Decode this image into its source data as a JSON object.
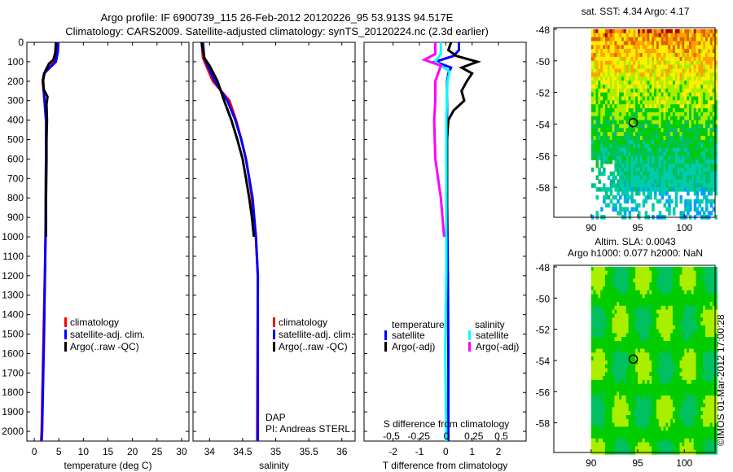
{
  "title_line1": "Argo profile: IF 6900739_115 26-Feb-2012 20120226_95 53.913S 94.517E",
  "title_line2": "Climatology: CARS2009. Satellite-adjusted climatology: synTS_20120224.nc (2.3d earlier)",
  "depth_ticks": [
    0,
    100,
    200,
    300,
    400,
    500,
    600,
    700,
    800,
    900,
    1000,
    1100,
    1200,
    1300,
    1400,
    1500,
    1600,
    1700,
    1800,
    1900,
    2000
  ],
  "colors": {
    "climatology": "#ff0000",
    "satellite": "#0000ff",
    "argo": "#000000",
    "sal_satellite": "#00ffff",
    "sal_argo": "#ff00ff"
  },
  "chart_data": [
    {
      "type": "line",
      "xlabel": "temperature (deg C)",
      "xlim": [
        -1.5,
        31.5
      ],
      "ylim": [
        0,
        2050
      ],
      "xticks": [
        0,
        5,
        10,
        15,
        20,
        25,
        30
      ],
      "legend": [
        "climatology",
        "satellite-adj. clim.",
        "Argo(..raw -QC)"
      ],
      "series": [
        {
          "name": "climatology",
          "color": "#ff0000",
          "depth": [
            0,
            50,
            100,
            130,
            160,
            200,
            300,
            400,
            600,
            1000,
            1150,
            1500,
            2000,
            2050
          ],
          "values": [
            4.4,
            4.4,
            4.1,
            3.0,
            2.0,
            1.7,
            2.1,
            2.4,
            2.4,
            2.3,
            2.2,
            1.9,
            1.5,
            1.4
          ]
        },
        {
          "name": "satellite-adj. clim.",
          "color": "#0000ff",
          "depth": [
            0,
            50,
            100,
            130,
            160,
            200,
            300,
            400,
            600,
            1000,
            1500,
            2000,
            2050
          ],
          "values": [
            4.9,
            4.8,
            4.4,
            3.2,
            2.0,
            1.8,
            2.1,
            2.4,
            2.4,
            2.3,
            2.0,
            1.6,
            1.5
          ]
        },
        {
          "name": "Argo(..raw -QC)",
          "color": "#000000",
          "depth": [
            0,
            50,
            90,
            110,
            150,
            190,
            240,
            280,
            320,
            400,
            500,
            600,
            800,
            1000
          ],
          "values": [
            4.4,
            4.3,
            3.9,
            3.0,
            2.2,
            1.8,
            1.9,
            2.7,
            2.5,
            2.6,
            2.5,
            2.5,
            2.4,
            2.4
          ]
        }
      ]
    },
    {
      "type": "line",
      "xlabel": "salinity",
      "xlim": [
        33.75,
        36.2
      ],
      "ylim": [
        0,
        2050
      ],
      "xticks": [
        34,
        34.5,
        35,
        35.5,
        36
      ],
      "legend": [
        "climatology",
        "satellite-adj. clim.",
        "Argo(..raw -QC)"
      ],
      "annotation": [
        "DAP",
        "PI: Andreas STERL"
      ],
      "series": [
        {
          "name": "climatology",
          "color": "#ff0000",
          "depth": [
            0,
            80,
            120,
            200,
            300,
            400,
            500,
            600,
            700,
            800,
            1000,
            1200,
            2000,
            2050
          ],
          "values": [
            33.88,
            33.9,
            33.95,
            34.05,
            34.3,
            34.4,
            34.48,
            34.55,
            34.6,
            34.64,
            34.7,
            34.73,
            34.72,
            34.72
          ]
        },
        {
          "name": "satellite-adj. clim.",
          "color": "#0000ff",
          "depth": [
            0,
            80,
            120,
            200,
            300,
            400,
            500,
            600,
            700,
            800,
            1000,
            1200,
            2000,
            2050
          ],
          "values": [
            33.9,
            33.92,
            33.97,
            34.08,
            34.27,
            34.39,
            34.48,
            34.55,
            34.6,
            34.65,
            34.7,
            34.73,
            34.73,
            34.73
          ]
        },
        {
          "name": "Argo(..raw -QC)",
          "color": "#000000",
          "depth": [
            0,
            80,
            120,
            200,
            300,
            400,
            500,
            600,
            700,
            800,
            900,
            1000
          ],
          "values": [
            33.88,
            33.92,
            34.0,
            34.12,
            34.22,
            34.33,
            34.42,
            34.5,
            34.55,
            34.6,
            34.64,
            34.67
          ]
        }
      ]
    },
    {
      "type": "line",
      "xlabel": "T difference from climatology",
      "x2label": "S difference from climatology",
      "xlim": [
        -3.1,
        3.05
      ],
      "ylim": [
        0,
        2050
      ],
      "xticks": [
        -2,
        -1,
        0,
        1,
        2
      ],
      "x2ticks": [
        -0.5,
        -0.25,
        0,
        0.25,
        0.5
      ],
      "legend_titles": [
        "temperature",
        "salinity"
      ],
      "legend": [
        "satellite",
        "Argo(-adj)",
        "satellite",
        "Argo(-adj)"
      ],
      "series": [
        {
          "name": "T satellite",
          "axis": "T",
          "color": "#0000ff",
          "depth": [
            0,
            40,
            70,
            100,
            130,
            160,
            200,
            400,
            800,
            1200,
            1600,
            2050
          ],
          "values": [
            0.5,
            0.5,
            0.3,
            -0.4,
            0.2,
            0.1,
            0.05,
            0.05,
            0.05,
            0.08,
            0.1,
            0.1
          ]
        },
        {
          "name": "T Argo(-adj)",
          "axis": "T",
          "color": "#000000",
          "depth": [
            0,
            40,
            70,
            100,
            130,
            160,
            200,
            250,
            300,
            350,
            400,
            500,
            600,
            800,
            1000
          ],
          "values": [
            0.2,
            0.1,
            0.4,
            1.2,
            0.6,
            1.0,
            0.8,
            0.6,
            0.7,
            0.3,
            0.1,
            0.05,
            0.05,
            0.05,
            0.05
          ]
        },
        {
          "name": "S satellite",
          "axis": "S",
          "color": "#00ffff",
          "depth": [
            0,
            60,
            100,
            150,
            200,
            400,
            800,
            1200,
            1600,
            2050
          ],
          "values": [
            -0.05,
            -0.05,
            -0.1,
            0.03,
            0.01,
            0,
            0,
            0,
            -0.01,
            0
          ]
        },
        {
          "name": "S Argo(-adj)",
          "axis": "S",
          "color": "#ff00ff",
          "depth": [
            0,
            60,
            90,
            120,
            200,
            300,
            400,
            600,
            800,
            1000
          ],
          "values": [
            -0.1,
            -0.1,
            -0.2,
            -0.05,
            -0.1,
            -0.1,
            -0.11,
            -0.1,
            -0.05,
            -0.02
          ]
        }
      ]
    },
    {
      "type": "heatmap",
      "title": "sat. SST: 4.34 Argo: 4.17",
      "xlim": [
        86,
        103.3
      ],
      "ylim": [
        -59.9,
        -47.9
      ],
      "xticks": [
        90,
        95,
        100
      ],
      "yticks": [
        -48,
        -50,
        -52,
        -54,
        -56,
        -58
      ],
      "marker": {
        "lon": 94.517,
        "lat": -53.913
      }
    },
    {
      "type": "heatmap",
      "title": [
        "Altim. SLA: 0.0043",
        "Argo h1000: 0.077 h2000: NaN"
      ],
      "xlim": [
        86,
        103.3
      ],
      "ylim": [
        -59.9,
        -47.9
      ],
      "xticks": [
        90,
        95,
        100
      ],
      "yticks": [
        -48,
        -50,
        -52,
        -54,
        -56,
        -58
      ],
      "marker": {
        "lon": 94.517,
        "lat": -53.913
      }
    }
  ],
  "credit": "©IMOS 01-Mar-2012 17:00:28"
}
